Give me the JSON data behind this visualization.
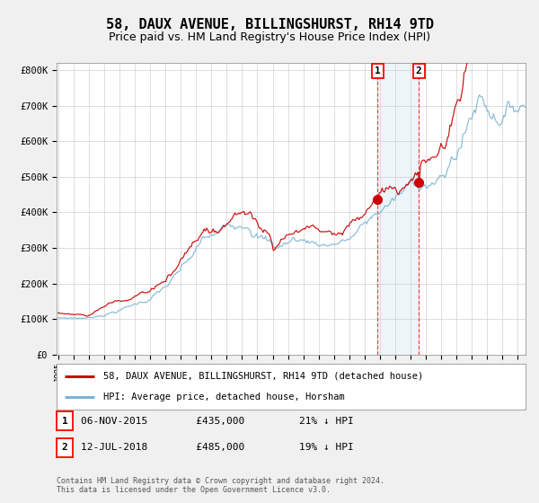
{
  "title": "58, DAUX AVENUE, BILLINGSHURST, RH14 9TD",
  "subtitle": "Price paid vs. HM Land Registry's House Price Index (HPI)",
  "hpi_color": "#7ab3d4",
  "price_color": "#cc0000",
  "background_color": "#f0f0f0",
  "plot_bg_color": "#ffffff",
  "grid_color": "#cccccc",
  "ylim": [
    0,
    820000
  ],
  "xlim_start": 1995.0,
  "xlim_end": 2025.5,
  "yticks": [
    0,
    100000,
    200000,
    300000,
    400000,
    500000,
    600000,
    700000,
    800000
  ],
  "ytick_labels": [
    "£0",
    "£100K",
    "£200K",
    "£300K",
    "£400K",
    "£500K",
    "£600K",
    "£700K",
    "£800K"
  ],
  "transaction1": {
    "date_num": 2015.84,
    "price": 435000,
    "label": "1",
    "date_str": "06-NOV-2015",
    "pct": "21%"
  },
  "transaction2": {
    "date_num": 2018.53,
    "price": 485000,
    "label": "2",
    "date_str": "12-JUL-2018",
    "pct": "19%"
  },
  "legend_entries": [
    {
      "label": "58, DAUX AVENUE, BILLINGSHURST, RH14 9TD (detached house)",
      "color": "#cc0000"
    },
    {
      "label": "HPI: Average price, detached house, Horsham",
      "color": "#7ab3d4"
    }
  ],
  "table_rows": [
    {
      "num": "1",
      "date": "06-NOV-2015",
      "price": "£435,000",
      "pct": "21% ↓ HPI"
    },
    {
      "num": "2",
      "date": "12-JUL-2018",
      "price": "£485,000",
      "pct": "19% ↓ HPI"
    }
  ],
  "footer": "Contains HM Land Registry data © Crown copyright and database right 2024.\nThis data is licensed under the Open Government Licence v3.0.",
  "title_fontsize": 11,
  "subtitle_fontsize": 9
}
